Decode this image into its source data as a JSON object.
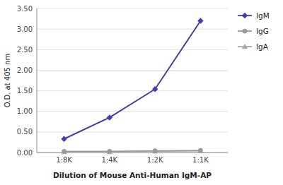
{
  "chart_data": {
    "type": "line",
    "x_label": "Dilution of Mouse Anti-Human IgM-AP",
    "y_label": "O.D. at 405 nm",
    "categories": [
      "1:8K",
      "1:4K",
      "1:2K",
      "1:1K"
    ],
    "series": [
      {
        "name": "IgM",
        "color": "#4040aa",
        "marker": "diamond",
        "values": [
          0.33,
          0.85,
          1.54,
          3.2
        ]
      },
      {
        "name": "IgG",
        "color": "#999999",
        "marker": "circle",
        "values": [
          0.03,
          0.03,
          0.04,
          0.05
        ]
      },
      {
        "name": "IgA",
        "color": "#aaaaaa",
        "marker": "triangle",
        "values": [
          0.02,
          0.02,
          0.03,
          0.04
        ]
      }
    ],
    "ylim": [
      0.0,
      3.5
    ],
    "yticks": [
      {
        "value": 0.0,
        "label": "0.00"
      },
      {
        "value": 0.5,
        "label": "0.50"
      },
      {
        "value": 1.0,
        "label": "1.00"
      },
      {
        "value": 1.5,
        "label": "1.50"
      },
      {
        "value": 2.0,
        "label": "2.00"
      },
      {
        "value": 2.5,
        "label": "2.50"
      },
      {
        "value": 3.0,
        "label": "3.00"
      },
      {
        "value": 3.5,
        "label": "3.50"
      }
    ],
    "grid": true,
    "legend": "right"
  }
}
